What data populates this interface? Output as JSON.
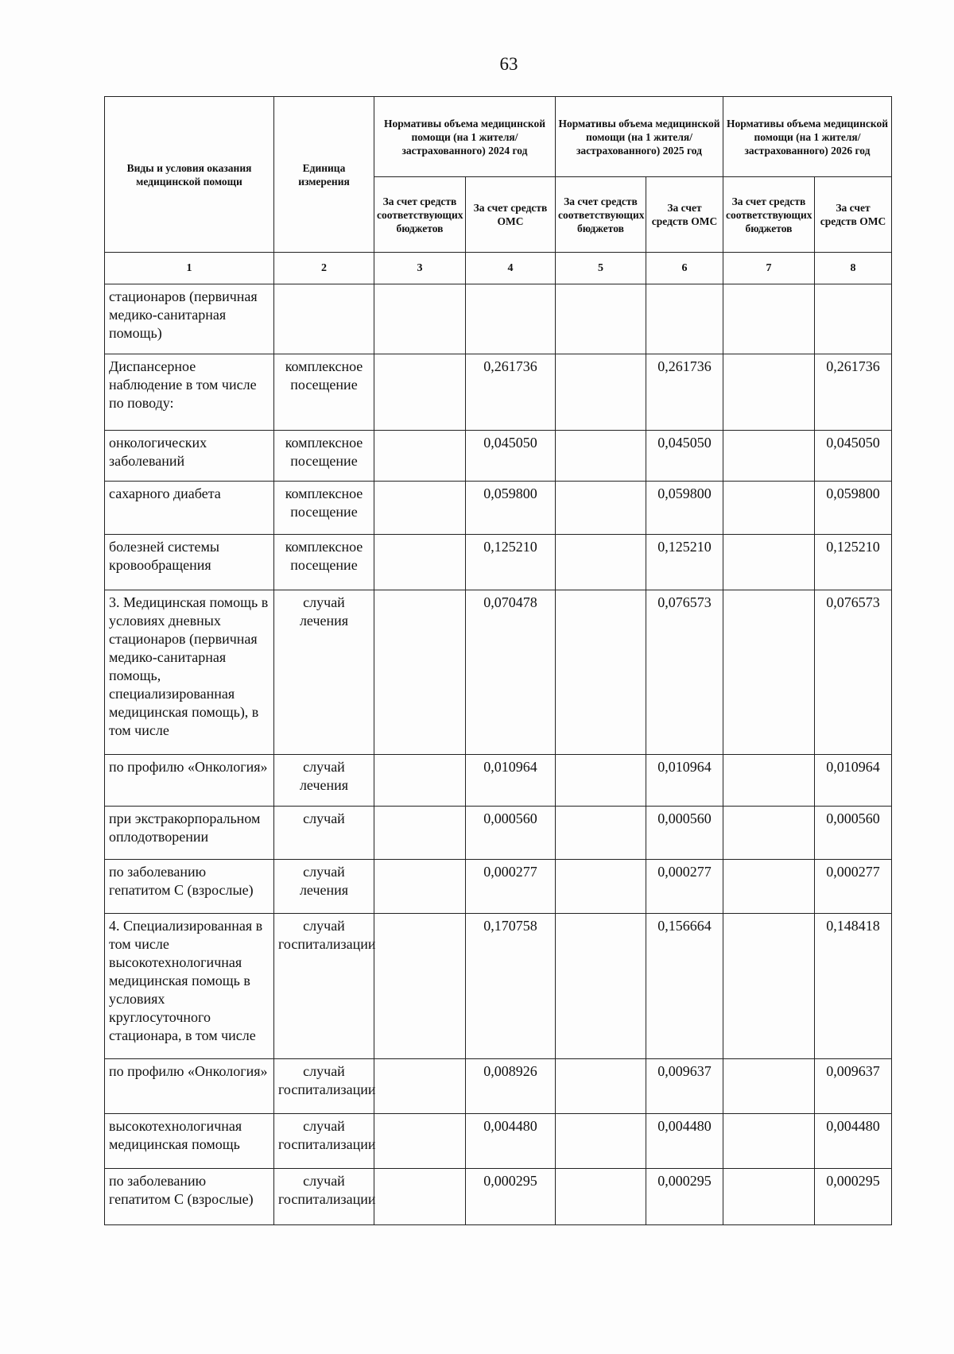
{
  "page_number": "63",
  "header": {
    "col1": "Виды и условия оказания медицинской помощи",
    "col2": "Единица измерения",
    "groups": [
      "Нормативы объема медицинской помощи (на 1 жителя/застрахованного) 2024 год",
      "Нормативы объема медицинской помощи (на 1 жителя/застрахованного) 2025 год",
      "Нормативы объема медицинской помощи (на 1 жителя/застрахованного) 2026 год"
    ],
    "sub_budget": "За счет средств соответствующих бюджетов",
    "sub_oms": "За счет средств ОМС",
    "numbers": [
      "1",
      "2",
      "3",
      "4",
      "5",
      "6",
      "7",
      "8"
    ]
  },
  "rows": [
    {
      "name": "стационаров (первичная медико-санитарная помощь)",
      "unit": "",
      "v2024": "",
      "v2025": "",
      "v2026": ""
    },
    {
      "name": "Диспансерное наблюдение в том числе по поводу:",
      "unit": "комплексное посещение",
      "v2024": "0,261736",
      "v2025": "0,261736",
      "v2026": "0,261736"
    },
    {
      "name": "онкологических заболеваний",
      "unit": "комплексное посещение",
      "v2024": "0,045050",
      "v2025": "0,045050",
      "v2026": "0,045050"
    },
    {
      "name": "сахарного диабета",
      "unit": "комплексное посещение",
      "v2024": "0,059800",
      "v2025": "0,059800",
      "v2026": "0,059800"
    },
    {
      "name": "болезней системы кровообращения",
      "unit": "комплексное посещение",
      "v2024": "0,125210",
      "v2025": "0,125210",
      "v2026": "0,125210"
    },
    {
      "name": "3. Медицинская помощь в условиях дневных стационаров (первичная медико-санитарная помощь, специализированная медицинская помощь), в том числе",
      "unit": "случай лечения",
      "v2024": "0,070478",
      "v2025": "0,076573",
      "v2026": "0,076573"
    },
    {
      "name": "по профилю «Онкология»",
      "unit": "случай лечения",
      "v2024": "0,010964",
      "v2025": "0,010964",
      "v2026": "0,010964"
    },
    {
      "name": "при экстракорпоральном оплодотворении",
      "unit": "случай",
      "v2024": "0,000560",
      "v2025": "0,000560",
      "v2026": "0,000560"
    },
    {
      "name": "по заболеванию гепатитом С (взрослые)",
      "unit": "случай лечения",
      "v2024": "0,000277",
      "v2025": "0,000277",
      "v2026": "0,000277"
    },
    {
      "name": "4. Специализированная в том числе высокотехнологичная медицинская помощь в условиях круглосуточного стационара, в том числе",
      "unit": "случай госпитализации",
      "v2024": "0,170758",
      "v2025": "0,156664",
      "v2026": "0,148418"
    },
    {
      "name": "по профилю «Онкология»",
      "unit": "случай госпитализации",
      "v2024": "0,008926",
      "v2025": "0,009637",
      "v2026": "0,009637"
    },
    {
      "name": "высокотехнологичная медицинская помощь",
      "unit": "случай госпитализации",
      "v2024": "0,004480",
      "v2025": "0,004480",
      "v2026": "0,004480"
    },
    {
      "name": "по заболеванию гепатитом С (взрослые)",
      "unit": "случай госпитализации",
      "v2024": "0,000295",
      "v2025": "0,000295",
      "v2026": "0,000295"
    }
  ]
}
